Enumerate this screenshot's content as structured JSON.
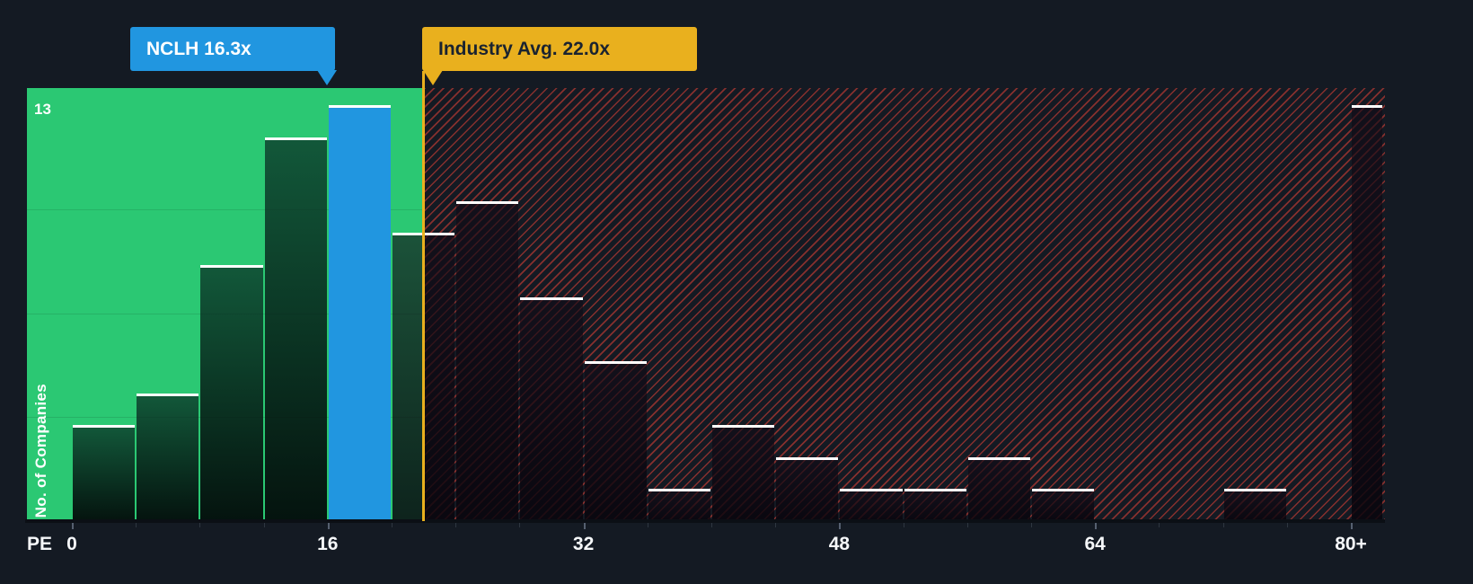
{
  "colors": {
    "background": "#141a23",
    "company_blue": "#2196e0",
    "company_text": "#ffffff",
    "industry_orange": "#e9b01e",
    "industry_text": "#1a2330",
    "below_avg_green": "#2bc873",
    "hatch_red": "#e44236",
    "bar_cap_white": "#ffffff"
  },
  "chart_data": {
    "type": "bar",
    "title": "",
    "xlabel": "PE",
    "ylabel": "No. of Companies",
    "ylim": [
      0,
      13
    ],
    "y_max_label": "13",
    "bin_width": 4,
    "first_bin_start": 0,
    "counts": [
      3,
      4,
      8,
      12,
      13,
      9,
      10,
      7,
      5,
      1,
      3,
      2,
      1,
      1,
      2,
      1,
      0,
      0,
      1,
      0,
      13
    ],
    "last_bin_is_overflow": true,
    "x_tick_values": [
      0,
      16,
      32,
      48,
      64,
      80
    ],
    "x_tick_labels": [
      "0",
      "16",
      "32",
      "48",
      "64",
      "80+"
    ],
    "grid": "faint horizontal lines at 25/50/75% in below-average region",
    "legend": "none",
    "company_marker": {
      "name": "NCLH",
      "label": "NCLH 16.3x",
      "value": 16.3,
      "bin_index": 4
    },
    "industry_marker": {
      "label": "Industry Avg. 22.0x",
      "value": 22.0
    },
    "regions": {
      "below_industry_avg": "solid green",
      "above_industry_avg": "dark with red diagonal hatching"
    }
  }
}
